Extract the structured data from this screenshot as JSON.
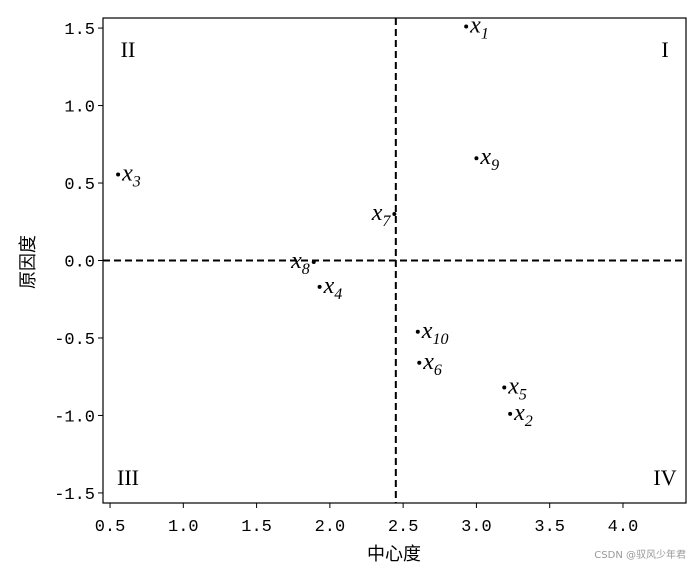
{
  "chart_data": {
    "type": "scatter",
    "xlabel": "中心度",
    "ylabel": "原因度",
    "x": [
      2.93,
      3.23,
      0.555,
      1.93,
      3.19,
      2.61,
      2.44,
      1.89,
      3.0,
      2.6
    ],
    "series": [
      {
        "color": "#000000",
        "values": [
          1.51,
          -0.99,
          0.555,
          -0.17,
          -0.82,
          -0.66,
          0.3,
          -0.01,
          0.66,
          -0.46
        ]
      }
    ],
    "point_labels": [
      {
        "var": "x",
        "sub": "1"
      },
      {
        "var": "x",
        "sub": "2"
      },
      {
        "var": "x",
        "sub": "3"
      },
      {
        "var": "x",
        "sub": "4"
      },
      {
        "var": "x",
        "sub": "5"
      },
      {
        "var": "x",
        "sub": "6"
      },
      {
        "var": "x",
        "sub": "7"
      },
      {
        "var": "x",
        "sub": "8"
      },
      {
        "var": "x",
        "sub": "9"
      },
      {
        "var": "x",
        "sub": "10"
      }
    ],
    "xlim": [
      0.452,
      4.43
    ],
    "ylim": [
      -1.565,
      1.565
    ],
    "xticks": [
      0.5,
      {
        "value": 1,
        "label": "1.0"
      },
      1.5,
      {
        "value": 2,
        "label": "2.0"
      },
      2.5,
      {
        "value": 3,
        "label": "3.0"
      },
      3.5,
      {
        "value": 4,
        "label": "4.0"
      }
    ],
    "yticks": [
      1.5,
      {
        "value": 1,
        "label": "1.0"
      },
      0.5,
      {
        "value": 0,
        "label": "0.0"
      },
      -0.5,
      {
        "value": -1,
        "label": "-1.0"
      },
      -1.5
    ],
    "vline": 2.45,
    "hline": 0,
    "quadrants": {
      "I": "I",
      "II": "II",
      "III": "III",
      "IV": "IV"
    },
    "watermark": "CSDN @驭风少年君"
  }
}
